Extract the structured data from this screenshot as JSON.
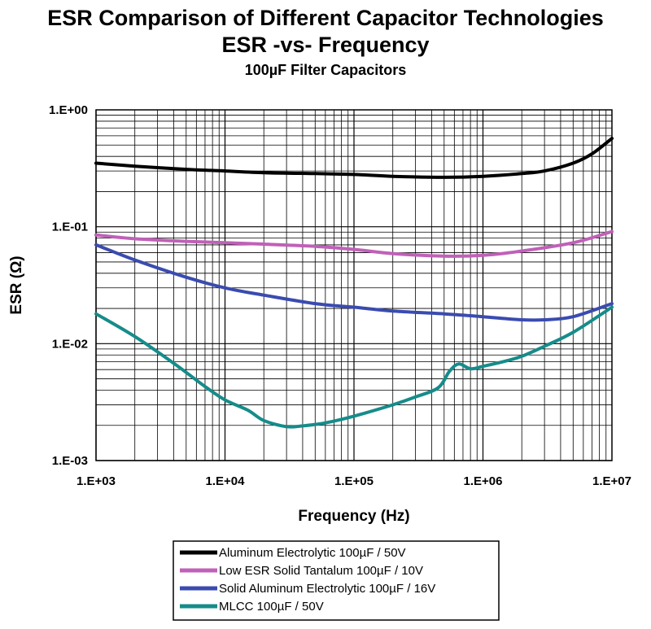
{
  "chart_data": {
    "type": "line",
    "title": "ESR Comparison of Different Capacitor Technologies",
    "subtitle": "ESR -vs- Frequency",
    "subtitle2": "100µF Filter Capacitors",
    "xlabel": "Frequency (Hz)",
    "ylabel": "ESR (Ω)",
    "x_scale": "log",
    "y_scale": "log",
    "xlim": [
      1000,
      10000000
    ],
    "ylim": [
      0.001,
      1
    ],
    "grid": true,
    "legend_position": "bottom",
    "x_ticks": [
      {
        "value": 1000,
        "label": "1.E+03"
      },
      {
        "value": 10000,
        "label": "1.E+04"
      },
      {
        "value": 100000,
        "label": "1.E+05"
      },
      {
        "value": 1000000,
        "label": "1.E+06"
      },
      {
        "value": 10000000,
        "label": "1.E+07"
      }
    ],
    "y_ticks": [
      {
        "value": 1,
        "label": "1.E+00"
      },
      {
        "value": 0.1,
        "label": "1.E-01"
      },
      {
        "value": 0.01,
        "label": "1.E-02"
      },
      {
        "value": 0.001,
        "label": "1.E-03"
      }
    ],
    "series": [
      {
        "name": "Aluminum Electrolytic 100µF / 50V",
        "color": "#000000",
        "x": [
          1000,
          2000,
          5000,
          10000,
          20000,
          50000,
          100000,
          200000,
          500000,
          1000000,
          2000000,
          3000000,
          5000000,
          7000000,
          10000000
        ],
        "y": [
          0.35,
          0.33,
          0.31,
          0.3,
          0.29,
          0.285,
          0.28,
          0.27,
          0.265,
          0.27,
          0.285,
          0.3,
          0.35,
          0.42,
          0.57
        ]
      },
      {
        "name": "Low ESR Solid Tantalum 100µF / 10V",
        "color": "#c060b8",
        "x": [
          1000,
          2000,
          5000,
          10000,
          20000,
          50000,
          100000,
          200000,
          500000,
          1000000,
          2000000,
          5000000,
          10000000
        ],
        "y": [
          0.085,
          0.079,
          0.075,
          0.073,
          0.071,
          0.068,
          0.064,
          0.059,
          0.056,
          0.057,
          0.062,
          0.073,
          0.091
        ]
      },
      {
        "name": "Solid Aluminum Electrolytic 100µF / 16V",
        "color": "#3a4bb0",
        "x": [
          1000,
          2000,
          5000,
          10000,
          20000,
          50000,
          100000,
          200000,
          500000,
          1000000,
          2000000,
          3000000,
          5000000,
          10000000
        ],
        "y": [
          0.07,
          0.052,
          0.037,
          0.03,
          0.026,
          0.022,
          0.0205,
          0.019,
          0.018,
          0.017,
          0.016,
          0.016,
          0.017,
          0.022
        ]
      },
      {
        "name": "MLCC 100µF / 50V",
        "color": "#158c8a",
        "x": [
          1000,
          2000,
          4000,
          7000,
          10000,
          15000,
          20000,
          30000,
          40000,
          60000,
          100000,
          200000,
          300000,
          450000,
          550000,
          650000,
          800000,
          1000000,
          1500000,
          2000000,
          3000000,
          5000000,
          10000000
        ],
        "y": [
          0.018,
          0.0115,
          0.0068,
          0.0043,
          0.0033,
          0.0027,
          0.0022,
          0.00195,
          0.00198,
          0.0021,
          0.0024,
          0.003,
          0.0035,
          0.0042,
          0.0058,
          0.0067,
          0.0061,
          0.0064,
          0.0071,
          0.0078,
          0.0095,
          0.0125,
          0.0205
        ]
      }
    ]
  }
}
